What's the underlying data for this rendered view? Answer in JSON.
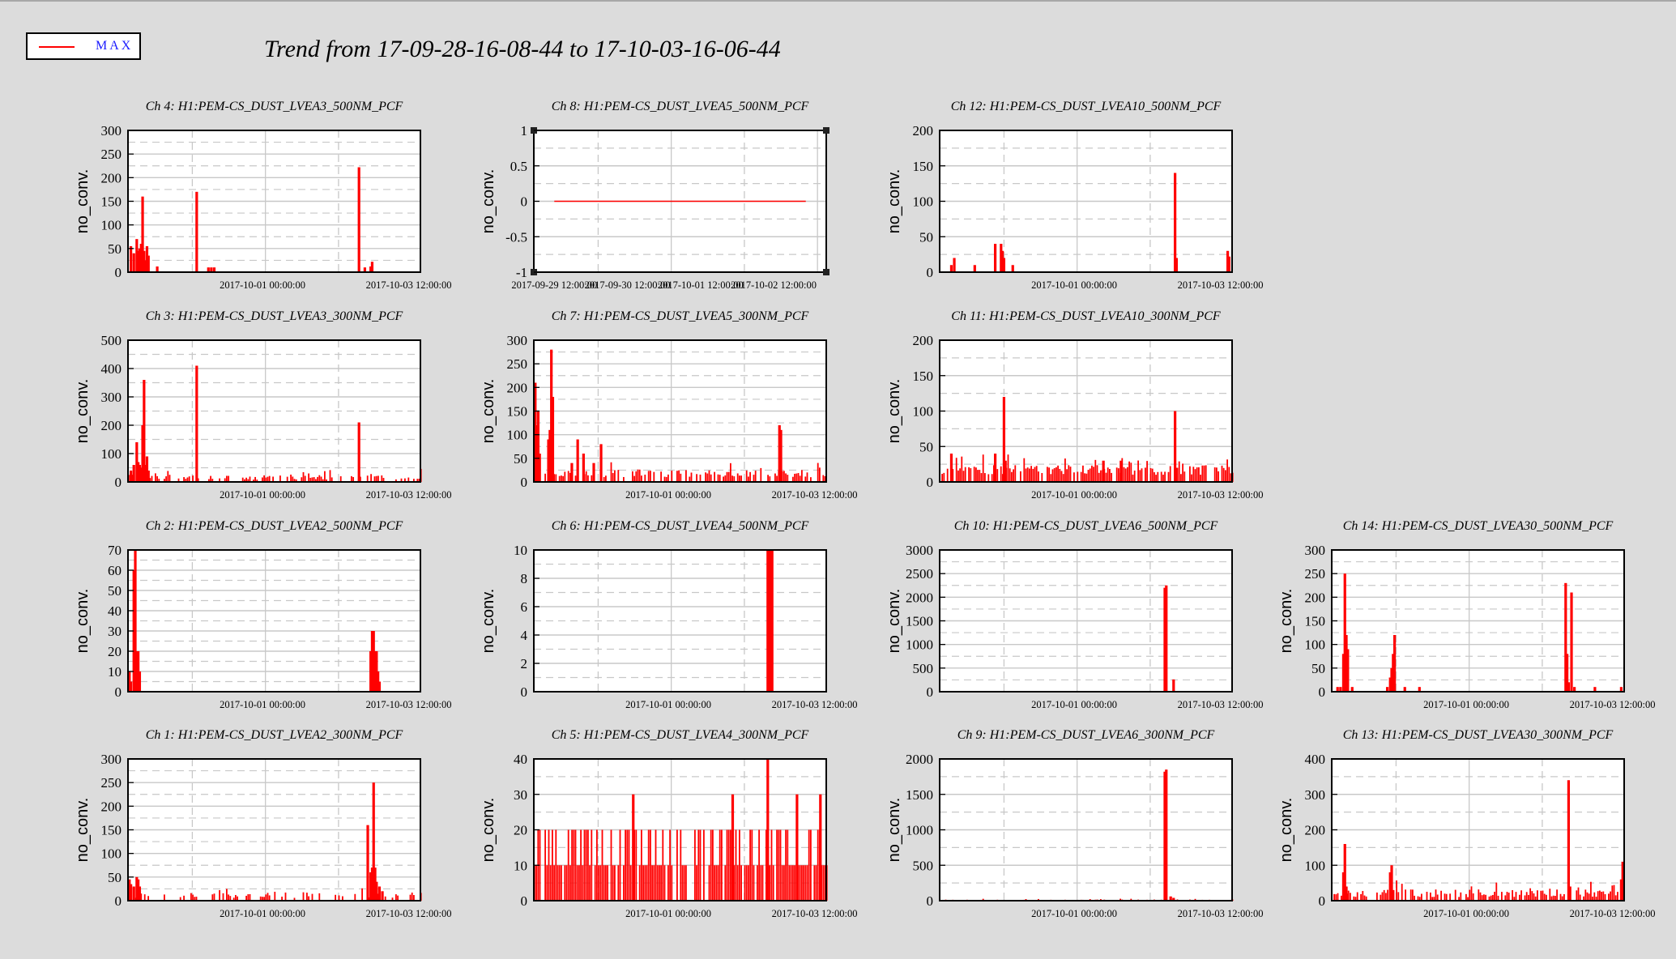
{
  "title": "Trend from 17-09-28-16-08-44 to 17-10-03-16-06-44",
  "legend": {
    "label": "MAX",
    "color": "#ff0000"
  },
  "colors": {
    "series": "#ff0000",
    "background": "#dcdcdc",
    "plot_background": "#ffffff",
    "grid": "#c8c8c8"
  },
  "chart_data": [
    {
      "type": "bar",
      "title": "Ch 4: H1:PEM-CS_DUST_LVEA3_500NM_PCF",
      "ylabel": "no_conv.",
      "series_name": "MAX",
      "yticks": [
        "0",
        "50",
        "100",
        "150",
        "200",
        "250",
        "300"
      ],
      "ylim": [
        0,
        300
      ],
      "xticks": [
        {
          "t": 0.46,
          "label": "2017-10-01 00:00:00"
        },
        {
          "t": 0.96,
          "label": "2017-10-03 12:00:00"
        }
      ],
      "x": [
        0.01,
        0.02,
        0.03,
        0.035,
        0.04,
        0.045,
        0.05,
        0.055,
        0.06,
        0.065,
        0.07,
        0.1,
        0.235,
        0.275,
        0.285,
        0.295,
        0.79,
        0.81,
        0.83,
        0.835
      ],
      "y": [
        55,
        40,
        70,
        45,
        50,
        60,
        160,
        45,
        25,
        55,
        35,
        12,
        170,
        10,
        10,
        10,
        222,
        10,
        12,
        22
      ]
    },
    {
      "type": "line",
      "title": "Ch 8: H1:PEM-CS_DUST_LVEA5_500NM_PCF",
      "ylabel": "no_conv.",
      "series_name": "MAX",
      "yticks": [
        "-1",
        "-0.5",
        "0",
        "0.5",
        "1"
      ],
      "ylim": [
        -1,
        1
      ],
      "xticks": [
        {
          "t": 0.07,
          "label": "2017-09-29 12:00:00"
        },
        {
          "t": 0.32,
          "label": "2017-09-30 12:00:00"
        },
        {
          "t": 0.57,
          "label": "2017-10-01 12:00:00"
        },
        {
          "t": 0.82,
          "label": "2017-10-02 12:00:00"
        }
      ],
      "x": [
        0.07,
        0.93
      ],
      "y": [
        0,
        0
      ]
    },
    {
      "type": "bar",
      "title": "Ch 12: H1:PEM-CS_DUST_LVEA10_500NM_PCF",
      "ylabel": "no_conv.",
      "series_name": "MAX",
      "yticks": [
        "0",
        "50",
        "100",
        "150",
        "200"
      ],
      "ylim": [
        0,
        200
      ],
      "xticks": [
        {
          "t": 0.46,
          "label": "2017-10-01 00:00:00"
        },
        {
          "t": 0.96,
          "label": "2017-10-03 12:00:00"
        }
      ],
      "x": [
        0.04,
        0.05,
        0.12,
        0.19,
        0.21,
        0.215,
        0.22,
        0.25,
        0.805,
        0.81,
        0.985,
        0.99
      ],
      "y": [
        10,
        20,
        10,
        40,
        40,
        30,
        20,
        10,
        140,
        20,
        30,
        22
      ]
    },
    {
      "type": "bar",
      "title": "Ch 3: H1:PEM-CS_DUST_LVEA3_300NM_PCF",
      "ylabel": "no_conv.",
      "series_name": "MAX",
      "yticks": [
        "0",
        "100",
        "200",
        "300",
        "400",
        "500"
      ],
      "ylim": [
        0,
        500
      ],
      "xticks": [
        {
          "t": 0.46,
          "label": "2017-10-01 00:00:00"
        },
        {
          "t": 0.96,
          "label": "2017-10-03 12:00:00"
        }
      ],
      "x": [
        0.01,
        0.02,
        0.03,
        0.035,
        0.04,
        0.045,
        0.05,
        0.055,
        0.06,
        0.065,
        0.07,
        0.235,
        0.79
      ],
      "y": [
        40,
        60,
        140,
        70,
        60,
        50,
        200,
        360,
        60,
        90,
        40,
        410,
        210
      ],
      "noise": {
        "seed": 3,
        "base": 8,
        "amp": 18,
        "density": 0.5
      }
    },
    {
      "type": "bar",
      "title": "Ch 7: H1:PEM-CS_DUST_LVEA5_300NM_PCF",
      "ylabel": "no_conv.",
      "series_name": "MAX",
      "yticks": [
        "0",
        "50",
        "100",
        "150",
        "200",
        "250",
        "300"
      ],
      "ylim": [
        0,
        300
      ],
      "xticks": [
        {
          "t": 0.46,
          "label": "2017-10-01 00:00:00"
        },
        {
          "t": 0.96,
          "label": "2017-10-03 12:00:00"
        }
      ],
      "x": [
        0.005,
        0.01,
        0.015,
        0.02,
        0.05,
        0.055,
        0.06,
        0.065,
        0.13,
        0.15,
        0.17,
        0.205,
        0.23,
        0.84,
        0.845
      ],
      "y": [
        210,
        120,
        150,
        60,
        90,
        110,
        280,
        180,
        40,
        90,
        60,
        40,
        80,
        120,
        110
      ],
      "noise": {
        "seed": 7,
        "base": 10,
        "amp": 15,
        "density": 0.6
      }
    },
    {
      "type": "bar",
      "title": "Ch 11: H1:PEM-CS_DUST_LVEA10_300NM_PCF",
      "ylabel": "no_conv.",
      "series_name": "MAX",
      "yticks": [
        "0",
        "50",
        "100",
        "150",
        "200"
      ],
      "ylim": [
        0,
        200
      ],
      "xticks": [
        {
          "t": 0.46,
          "label": "2017-10-01 00:00:00"
        },
        {
          "t": 0.96,
          "label": "2017-10-03 12:00:00"
        }
      ],
      "x": [
        0.04,
        0.19,
        0.22,
        0.225,
        0.56,
        0.62,
        0.805,
        0.81
      ],
      "y": [
        40,
        40,
        120,
        30,
        30,
        30,
        100,
        20
      ],
      "noise": {
        "seed": 11,
        "base": 10,
        "amp": 14,
        "density": 0.8
      }
    },
    {
      "type": "bar",
      "title": "Ch 2: H1:PEM-CS_DUST_LVEA2_500NM_PCF",
      "ylabel": "no_conv.",
      "series_name": "MAX",
      "yticks": [
        "0",
        "10",
        "20",
        "30",
        "40",
        "50",
        "60",
        "70"
      ],
      "ylim": [
        0,
        70
      ],
      "xticks": [
        {
          "t": 0.46,
          "label": "2017-10-01 00:00:00"
        },
        {
          "t": 0.96,
          "label": "2017-10-03 12:00:00"
        }
      ],
      "x": [
        0.005,
        0.01,
        0.02,
        0.025,
        0.03,
        0.035,
        0.04,
        0.83,
        0.835,
        0.84,
        0.845,
        0.85,
        0.855,
        0.86
      ],
      "y": [
        10,
        5,
        60,
        70,
        20,
        20,
        10,
        20,
        30,
        30,
        20,
        20,
        10,
        5
      ]
    },
    {
      "type": "bar",
      "title": "Ch 6: H1:PEM-CS_DUST_LVEA4_500NM_PCF",
      "ylabel": "no_conv.",
      "series_name": "MAX",
      "yticks": [
        "0",
        "2",
        "4",
        "6",
        "8",
        "10"
      ],
      "ylim": [
        0,
        10
      ],
      "xticks": [
        {
          "t": 0.46,
          "label": "2017-10-01 00:00:00"
        },
        {
          "t": 0.96,
          "label": "2017-10-03 12:00:00"
        }
      ],
      "x": [
        0.8,
        0.805,
        0.81,
        0.815
      ],
      "y": [
        10,
        10,
        10,
        10
      ]
    },
    {
      "type": "bar",
      "title": "Ch 10: H1:PEM-CS_DUST_LVEA6_500NM_PCF",
      "ylabel": "no_conv.",
      "series_name": "MAX",
      "yticks": [
        "0",
        "500",
        "1000",
        "1500",
        "2000",
        "2500",
        "3000"
      ],
      "ylim": [
        0,
        3000
      ],
      "xticks": [
        {
          "t": 0.46,
          "label": "2017-10-01 00:00:00"
        },
        {
          "t": 0.96,
          "label": "2017-10-03 12:00:00"
        }
      ],
      "x": [
        0.77,
        0.775,
        0.8
      ],
      "y": [
        2200,
        2250,
        260
      ]
    },
    {
      "type": "bar",
      "title": "Ch 14: H1:PEM-CS_DUST_LVEA30_500NM_PCF",
      "ylabel": "no_conv.",
      "series_name": "MAX",
      "yticks": [
        "0",
        "50",
        "100",
        "150",
        "200",
        "250",
        "300"
      ],
      "ylim": [
        0,
        300
      ],
      "xticks": [
        {
          "t": 0.46,
          "label": "2017-10-01 00:00:00"
        },
        {
          "t": 0.96,
          "label": "2017-10-03 12:00:00"
        }
      ],
      "x": [
        0.02,
        0.03,
        0.04,
        0.045,
        0.05,
        0.055,
        0.07,
        0.19,
        0.2,
        0.205,
        0.21,
        0.215,
        0.25,
        0.3,
        0.8,
        0.805,
        0.81,
        0.82,
        0.83,
        0.9,
        0.99
      ],
      "y": [
        10,
        10,
        80,
        250,
        120,
        90,
        10,
        10,
        30,
        50,
        80,
        120,
        10,
        10,
        230,
        80,
        20,
        210,
        10,
        10,
        10
      ]
    },
    {
      "type": "bar",
      "title": "Ch 1: H1:PEM-CS_DUST_LVEA2_300NM_PCF",
      "ylabel": "no_conv.",
      "series_name": "MAX",
      "yticks": [
        "0",
        "50",
        "100",
        "150",
        "200",
        "250",
        "300"
      ],
      "ylim": [
        0,
        300
      ],
      "xticks": [
        {
          "t": 0.46,
          "label": "2017-10-01 00:00:00"
        },
        {
          "t": 0.96,
          "label": "2017-10-03 12:00:00"
        }
      ],
      "x": [
        0.005,
        0.01,
        0.02,
        0.03,
        0.035,
        0.04,
        0.82,
        0.83,
        0.835,
        0.84,
        0.845,
        0.85,
        0.86,
        0.87
      ],
      "y": [
        45,
        35,
        30,
        50,
        45,
        30,
        160,
        60,
        70,
        250,
        70,
        40,
        30,
        20
      ],
      "noise": {
        "seed": 5,
        "base": 6,
        "amp": 12,
        "density": 0.4
      }
    },
    {
      "type": "bar",
      "title": "Ch 5: H1:PEM-CS_DUST_LVEA4_300NM_PCF",
      "ylabel": "no_conv.",
      "series_name": "MAX",
      "yticks": [
        "0",
        "10",
        "20",
        "30",
        "40"
      ],
      "ylim": [
        0,
        40
      ],
      "xticks": [
        {
          "t": 0.46,
          "label": "2017-10-01 00:00:00"
        },
        {
          "t": 0.96,
          "label": "2017-10-03 12:00:00"
        }
      ],
      "x": [
        0.34,
        0.68,
        0.8,
        0.9,
        0.98
      ],
      "y": [
        30,
        30,
        40,
        30,
        30
      ],
      "noise": {
        "seed": 9,
        "base": 10,
        "amp": 10,
        "density": 0.85,
        "quantum": 10
      }
    },
    {
      "type": "bar",
      "title": "Ch 9: H1:PEM-CS_DUST_LVEA6_300NM_PCF",
      "ylabel": "no_conv.",
      "series_name": "MAX",
      "yticks": [
        "0",
        "500",
        "1000",
        "1500",
        "2000"
      ],
      "ylim": [
        0,
        2000
      ],
      "xticks": [
        {
          "t": 0.46,
          "label": "2017-10-01 00:00:00"
        },
        {
          "t": 0.96,
          "label": "2017-10-03 12:00:00"
        }
      ],
      "x": [
        0.77,
        0.775,
        0.79,
        0.8
      ],
      "y": [
        1820,
        1850,
        60,
        40
      ],
      "noise": {
        "seed": 13,
        "base": 4,
        "amp": 12,
        "density": 0.4
      }
    },
    {
      "type": "bar",
      "title": "Ch 13: H1:PEM-CS_DUST_LVEA30_300NM_PCF",
      "ylabel": "no_conv.",
      "series_name": "MAX",
      "yticks": [
        "0",
        "100",
        "200",
        "300",
        "400"
      ],
      "ylim": [
        0,
        400
      ],
      "xticks": [
        {
          "t": 0.46,
          "label": "2017-10-01 00:00:00"
        },
        {
          "t": 0.96,
          "label": "2017-10-03 12:00:00"
        }
      ],
      "x": [
        0.04,
        0.045,
        0.05,
        0.055,
        0.2,
        0.205,
        0.21,
        0.81,
        0.815,
        0.99,
        0.995
      ],
      "y": [
        80,
        160,
        40,
        20,
        80,
        100,
        30,
        340,
        40,
        60,
        110
      ],
      "noise": {
        "seed": 17,
        "base": 10,
        "amp": 22,
        "density": 0.7
      }
    }
  ]
}
